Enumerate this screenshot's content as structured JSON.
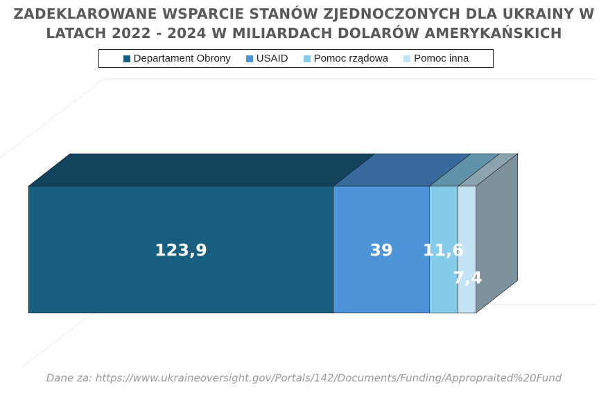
{
  "chart_data": {
    "type": "bar",
    "orientation": "horizontal-stacked-3d",
    "title": "ZADEKLAROWANE WSPARCIE STANÓW ZJEDNOCZONYCH DLA UKRAINY W LATACH 2022 - 2024 W MILIARDACH DOLARÓW AMERYKAŃSKICH",
    "series": [
      {
        "name": "Departament Obrony",
        "value": 123.9,
        "label": "123,9",
        "color": "#175f80"
      },
      {
        "name": "USAID",
        "value": 39,
        "label": "39",
        "color": "#4e94d9"
      },
      {
        "name": "Pomoc rządowa",
        "value": 11.6,
        "label": "11,6",
        "color": "#85cceb"
      },
      {
        "name": "Pomoc inna",
        "value": 7.4,
        "label": "7,4",
        "color": "#c3e4f4"
      }
    ],
    "legend_position": "top",
    "grid": false
  },
  "source_note": "Dane za: https://www.ukraineoversight.gov/Portals/142/Documents/Funding/Appropraited%20Fund"
}
